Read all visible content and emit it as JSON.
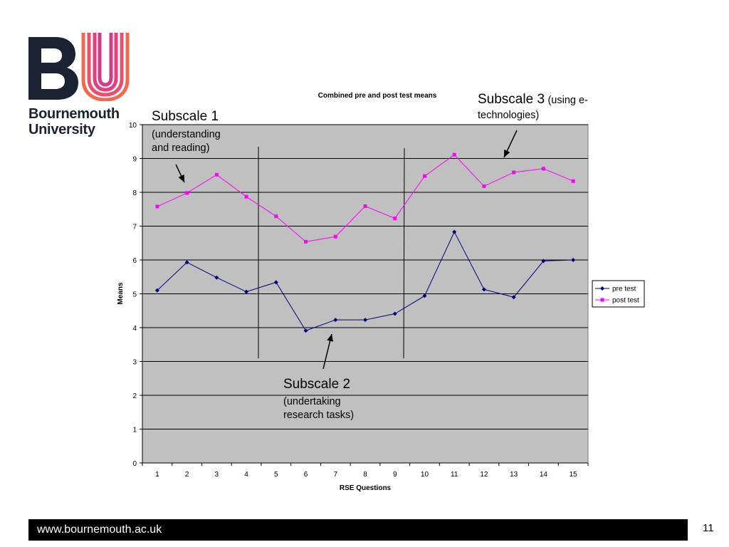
{
  "logo": {
    "letters": "BU",
    "line1": "Bournemouth",
    "line2": "University"
  },
  "chart_data": {
    "type": "line",
    "title": "Combined pre and post test means",
    "xlabel": "RSE Questions",
    "ylabel": "Means",
    "categories": [
      "1",
      "2",
      "3",
      "4",
      "5",
      "6",
      "7",
      "8",
      "9",
      "10",
      "11",
      "12",
      "13",
      "14",
      "15"
    ],
    "ylim": [
      0,
      10
    ],
    "yticks": [
      "0",
      "1",
      "2",
      "3",
      "4",
      "5",
      "6",
      "7",
      "8",
      "9",
      "10"
    ],
    "grid": true,
    "legend_position": "right",
    "series": [
      {
        "name": "pre test",
        "color": "#000080",
        "marker": "diamond",
        "values": [
          5.1,
          5.93,
          5.48,
          5.06,
          5.34,
          3.91,
          4.23,
          4.23,
          4.41,
          4.94,
          6.83,
          5.13,
          4.9,
          5.97,
          6.0
        ]
      },
      {
        "name": "post test",
        "color": "#ff00ff",
        "marker": "square",
        "values": [
          7.58,
          7.98,
          8.52,
          7.87,
          7.29,
          6.54,
          6.69,
          7.59,
          7.23,
          8.48,
          9.11,
          8.18,
          8.59,
          8.7,
          8.33
        ]
      }
    ]
  },
  "annotations": {
    "subscale1_title": "Subscale 1",
    "subscale1_line1": "(understanding",
    "subscale1_line2": "and reading)",
    "subscale2_title": "Subscale 2",
    "subscale2_line1": "(undertaking",
    "subscale2_line2": "research tasks)",
    "subscale3_title": "Subscale 3",
    "subscale3_detail": "(using e-",
    "subscale3_line2": "technologies)"
  },
  "footer": {
    "url": "www.bournemouth.ac.uk",
    "page_number": "11"
  }
}
